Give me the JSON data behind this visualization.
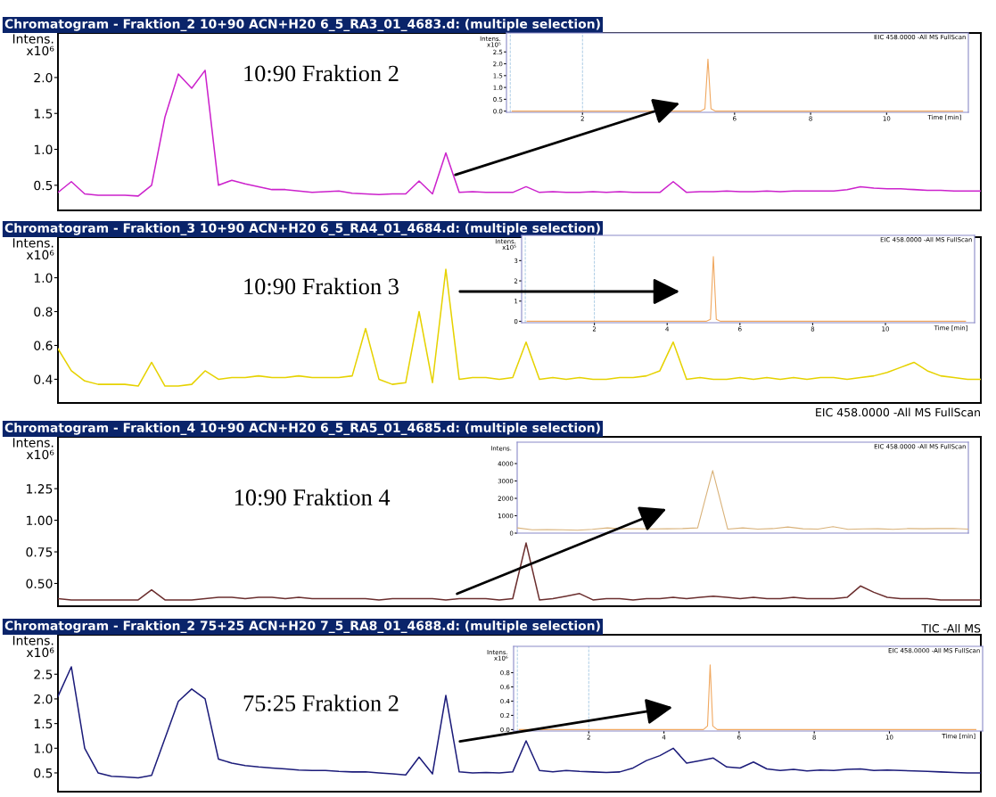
{
  "chart_data": [
    {
      "type": "line",
      "title": "Chromatogram - Fraktion_2 10+90 ACN+H20 6_5_RA3_01_4683.d: (multiple selection)",
      "ylabel": "Intens.\nx10⁶",
      "annotations": [
        "10:90 Fraktion 2"
      ],
      "tick_labels": "y",
      "categories": [
        null,
        null,
        null,
        null,
        null,
        null,
        null,
        null,
        null,
        null,
        null,
        null,
        null,
        null,
        null,
        null,
        null,
        null,
        null,
        null,
        null,
        null,
        null,
        null,
        null,
        null,
        null,
        null,
        null,
        null,
        null,
        null,
        null,
        null,
        null,
        null,
        null,
        null,
        null,
        null,
        null,
        null,
        null,
        null,
        null,
        null,
        null,
        null,
        null,
        null,
        null,
        null,
        null,
        null,
        null,
        null,
        null,
        null,
        null,
        null,
        null,
        null,
        null,
        null,
        null,
        null,
        null,
        null,
        null,
        null
      ],
      "ylim": [
        0.15,
        2.62
      ],
      "yticks": [
        0.5,
        {
          "value": 1.0,
          "label": "1.0"
        },
        1.5,
        {
          "value": 2.0,
          "label": "2.0"
        }
      ],
      "series": [
        {
          "color": "#cc22cc",
          "values": [
            0.4,
            0.55,
            0.38,
            0.36,
            0.36,
            0.36,
            0.35,
            0.5,
            1.45,
            2.05,
            1.85,
            2.1,
            0.5,
            0.57,
            0.52,
            0.48,
            0.44,
            0.44,
            0.42,
            0.4,
            0.41,
            0.42,
            0.39,
            0.38,
            0.37,
            0.38,
            0.38,
            0.56,
            0.38,
            0.95,
            0.4,
            0.41,
            0.4,
            0.4,
            0.4,
            0.48,
            0.4,
            0.41,
            0.4,
            0.4,
            0.41,
            0.4,
            0.41,
            0.4,
            0.4,
            0.4,
            0.55,
            0.4,
            0.41,
            0.41,
            0.42,
            0.41,
            0.41,
            0.42,
            0.41,
            0.42,
            0.42,
            0.42,
            0.42,
            0.44,
            0.48,
            0.46,
            0.45,
            0.45,
            0.44,
            0.43,
            0.43,
            0.42,
            0.42,
            0.42
          ]
        }
      ]
    },
    {
      "type": "line",
      "ylabel": "Intens.\nx10⁵",
      "xlabel": "Time [min]",
      "annotations": [
        "EIC 458.0000 -All MS FullScan"
      ],
      "xlim": [
        0,
        12.15
      ],
      "xticks": [
        2,
        4,
        6,
        8,
        10
      ],
      "ylim": [
        -0.05,
        3.3
      ],
      "yticks": [
        {
          "value": 0.0,
          "label": "0.0"
        },
        0.5,
        {
          "value": 1.0,
          "label": "1.0"
        },
        1.5,
        {
          "value": 2.0,
          "label": "2.0"
        },
        2.5
      ],
      "ref_lines": [
        {
          "axis": "x",
          "value": 0.1,
          "color": "#9cc3e0",
          "line_style": "dashed"
        },
        {
          "axis": "x",
          "value": 2.0,
          "color": "#9cc3e0",
          "line_style": "dashed"
        }
      ],
      "series": [
        {
          "color": "#f0a860",
          "x": [
            0.15,
            5.1,
            5.22,
            5.3,
            5.38,
            5.5,
            12.0
          ],
          "values": [
            0,
            0,
            0.1,
            2.2,
            0.1,
            0,
            0
          ]
        }
      ]
    },
    {
      "type": "line",
      "title": "Chromatogram - Fraktion_3 10+90 ACN+H20 6_5_RA4_01_4684.d: (multiple selection)",
      "ylabel": "Intens.\nx10⁶",
      "annotations": [
        "10:90 Fraktion 3",
        "EIC 458.0000 -All MS FullScan"
      ],
      "tick_labels": "y",
      "categories": [
        null,
        null,
        null,
        null,
        null,
        null,
        null,
        null,
        null,
        null,
        null,
        null,
        null,
        null,
        null,
        null,
        null,
        null,
        null,
        null,
        null,
        null,
        null,
        null,
        null,
        null,
        null,
        null,
        null,
        null,
        null,
        null,
        null,
        null,
        null,
        null,
        null,
        null,
        null,
        null,
        null,
        null,
        null,
        null,
        null,
        null,
        null,
        null,
        null,
        null,
        null,
        null,
        null,
        null,
        null,
        null,
        null,
        null,
        null,
        null,
        null,
        null,
        null,
        null,
        null,
        null,
        null,
        null,
        null,
        null
      ],
      "ylim": [
        0.26,
        1.24
      ],
      "yticks": [
        0.4,
        0.6,
        0.8,
        {
          "value": 1.0,
          "label": "1.0"
        }
      ],
      "series": [
        {
          "color": "#e6d200",
          "values": [
            0.58,
            0.45,
            0.39,
            0.37,
            0.37,
            0.37,
            0.36,
            0.5,
            0.36,
            0.36,
            0.37,
            0.45,
            0.4,
            0.41,
            0.41,
            0.42,
            0.41,
            0.41,
            0.42,
            0.41,
            0.41,
            0.41,
            0.42,
            0.7,
            0.4,
            0.37,
            0.38,
            0.8,
            0.38,
            1.05,
            0.4,
            0.41,
            0.41,
            0.4,
            0.41,
            0.62,
            0.4,
            0.41,
            0.4,
            0.41,
            0.4,
            0.4,
            0.41,
            0.41,
            0.42,
            0.45,
            0.62,
            0.4,
            0.41,
            0.4,
            0.4,
            0.41,
            0.4,
            0.41,
            0.4,
            0.41,
            0.4,
            0.41,
            0.41,
            0.4,
            0.41,
            0.42,
            0.44,
            0.47,
            0.5,
            0.45,
            0.42,
            0.41,
            0.4,
            0.4
          ]
        }
      ]
    },
    {
      "type": "line",
      "ylabel": "Intens.\nx10⁵",
      "xlabel": "Time [min]",
      "annotations": [
        "EIC 458.0000 -All MS FullScan"
      ],
      "xlim": [
        0,
        12.45
      ],
      "xticks": [
        2,
        4,
        6,
        8,
        10
      ],
      "ylim": [
        -0.07,
        4.25
      ],
      "yticks": [
        0,
        1,
        2,
        3
      ],
      "ref_lines": [
        {
          "axis": "x",
          "value": 0.1,
          "color": "#9cc3e0",
          "line_style": "dashed"
        },
        {
          "axis": "x",
          "value": 2.0,
          "color": "#9cc3e0",
          "line_style": "dashed"
        }
      ],
      "series": [
        {
          "color": "#f0a860",
          "x": [
            0.15,
            5.07,
            5.19,
            5.27,
            5.35,
            5.47,
            12.2
          ],
          "values": [
            0,
            0,
            0.1,
            3.2,
            0.1,
            0,
            0
          ]
        }
      ]
    },
    {
      "type": "line",
      "title": "Chromatogram - Fraktion_4 10+90 ACN+H20 6_5_RA5_01_4685.d: (multiple selection)",
      "ylabel": "Intens.\nx10⁶",
      "annotations": [
        "10:90 Fraktion 4"
      ],
      "tick_labels": "y",
      "categories": [
        null,
        null,
        null,
        null,
        null,
        null,
        null,
        null,
        null,
        null,
        null,
        null,
        null,
        null,
        null,
        null,
        null,
        null,
        null,
        null,
        null,
        null,
        null,
        null,
        null,
        null,
        null,
        null,
        null,
        null,
        null,
        null,
        null,
        null,
        null,
        null,
        null,
        null,
        null,
        null,
        null,
        null,
        null,
        null,
        null,
        null,
        null,
        null,
        null,
        null,
        null,
        null,
        null,
        null,
        null,
        null,
        null,
        null,
        null,
        null,
        null,
        null,
        null,
        null,
        null,
        null,
        null,
        null,
        null,
        null
      ],
      "ylim": [
        0.32,
        1.66
      ],
      "yticks": [
        {
          "value": 0.5,
          "label": "0.50"
        },
        0.75,
        {
          "value": 1.0,
          "label": "1.00"
        },
        1.25
      ],
      "series": [
        {
          "color": "#6b2e2e",
          "values": [
            0.38,
            0.37,
            0.37,
            0.37,
            0.37,
            0.37,
            0.37,
            0.45,
            0.37,
            0.37,
            0.37,
            0.38,
            0.39,
            0.39,
            0.38,
            0.39,
            0.39,
            0.38,
            0.39,
            0.38,
            0.38,
            0.38,
            0.38,
            0.38,
            0.37,
            0.38,
            0.38,
            0.38,
            0.38,
            0.37,
            0.38,
            0.38,
            0.38,
            0.37,
            0.38,
            0.82,
            0.37,
            0.38,
            0.4,
            0.42,
            0.37,
            0.38,
            0.38,
            0.37,
            0.38,
            0.38,
            0.39,
            0.38,
            0.39,
            0.4,
            0.39,
            0.38,
            0.39,
            0.38,
            0.38,
            0.39,
            0.38,
            0.38,
            0.38,
            0.39,
            0.48,
            0.43,
            0.39,
            0.38,
            0.38,
            0.38,
            0.37,
            0.37,
            0.37,
            0.37
          ]
        }
      ]
    },
    {
      "type": "line",
      "ylabel": "Intens.",
      "annotations": [
        "EIC 458.0000 -All MS FullScan"
      ],
      "categories": [
        null,
        null,
        null,
        null,
        null,
        null,
        null,
        null,
        null,
        null,
        null,
        null,
        null,
        null,
        null,
        null,
        null,
        null,
        null,
        null,
        null,
        null,
        null,
        null,
        null,
        null,
        null,
        null,
        null,
        null,
        null
      ],
      "ylim": [
        0,
        5230
      ],
      "yticks": [
        0,
        1000,
        2000,
        3000,
        4000
      ],
      "tick_labels": "y",
      "series": [
        {
          "color": "#d9b27a",
          "values": [
            300,
            190,
            200,
            190,
            170,
            220,
            300,
            240,
            250,
            240,
            250,
            260,
            300,
            3600,
            230,
            300,
            230,
            260,
            350,
            250,
            230,
            370,
            220,
            240,
            250,
            220,
            260,
            250,
            260,
            270,
            230
          ]
        }
      ]
    },
    {
      "type": "line",
      "title": "Chromatogram - Fraktion_2 75+25 ACN+H20 7_5_RA8_01_4688.d: (multiple selection)",
      "ylabel": "Intens.\nx10⁶",
      "annotations": [
        "75:25 Fraktion 2",
        "TIC -All MS"
      ],
      "tick_labels": "y",
      "categories": [
        null,
        null,
        null,
        null,
        null,
        null,
        null,
        null,
        null,
        null,
        null,
        null,
        null,
        null,
        null,
        null,
        null,
        null,
        null,
        null,
        null,
        null,
        null,
        null,
        null,
        null,
        null,
        null,
        null,
        null,
        null,
        null,
        null,
        null,
        null,
        null,
        null,
        null,
        null,
        null,
        null,
        null,
        null,
        null,
        null,
        null,
        null,
        null,
        null,
        null,
        null,
        null,
        null,
        null,
        null,
        null,
        null,
        null,
        null,
        null,
        null,
        null,
        null,
        null,
        null,
        null,
        null,
        null,
        null,
        null
      ],
      "ylim": [
        0.12,
        3.3
      ],
      "yticks": [
        0.5,
        {
          "value": 1.0,
          "label": "1.0"
        },
        1.5,
        {
          "value": 2.0,
          "label": "2.0"
        },
        2.5
      ],
      "series": [
        {
          "color": "#1c1c7a",
          "values": [
            2.05,
            2.65,
            1.0,
            0.5,
            0.43,
            0.42,
            0.4,
            0.45,
            1.2,
            1.95,
            2.2,
            2.0,
            0.78,
            0.7,
            0.65,
            0.62,
            0.6,
            0.58,
            0.56,
            0.55,
            0.55,
            0.53,
            0.52,
            0.52,
            0.5,
            0.48,
            0.46,
            0.82,
            0.48,
            2.07,
            0.52,
            0.5,
            0.51,
            0.5,
            0.52,
            1.15,
            0.55,
            0.52,
            0.55,
            0.53,
            0.52,
            0.51,
            0.52,
            0.6,
            0.75,
            0.85,
            1.0,
            0.7,
            0.75,
            0.8,
            0.62,
            0.6,
            0.72,
            0.58,
            0.55,
            0.57,
            0.54,
            0.56,
            0.55,
            0.57,
            0.58,
            0.55,
            0.56,
            0.55,
            0.54,
            0.53,
            0.52,
            0.51,
            0.5,
            0.5
          ]
        }
      ]
    },
    {
      "type": "line",
      "ylabel": "Intens.\nx10⁶",
      "xlabel": "Time [min]",
      "annotations": [
        "EIC 458.0000 -All MS FullScan"
      ],
      "xlim": [
        0,
        12.48
      ],
      "xticks": [
        2,
        4,
        6,
        8,
        10
      ],
      "ylim": [
        -0.02,
        1.17
      ],
      "yticks": [
        {
          "value": 0.0,
          "label": "0.0"
        },
        0.2,
        0.4,
        0.6,
        0.8
      ],
      "ref_lines": [
        {
          "axis": "x",
          "value": 0.1,
          "color": "#9cc3e0",
          "line_style": "dashed"
        },
        {
          "axis": "x",
          "value": 2.0,
          "color": "#9cc3e0",
          "line_style": "dashed"
        }
      ],
      "series": [
        {
          "color": "#f0a860",
          "x": [
            0.15,
            5.05,
            5.16,
            5.23,
            5.3,
            5.42,
            12.3
          ],
          "values": [
            0,
            0,
            0.05,
            0.91,
            0.05,
            0,
            0
          ]
        }
      ]
    }
  ]
}
